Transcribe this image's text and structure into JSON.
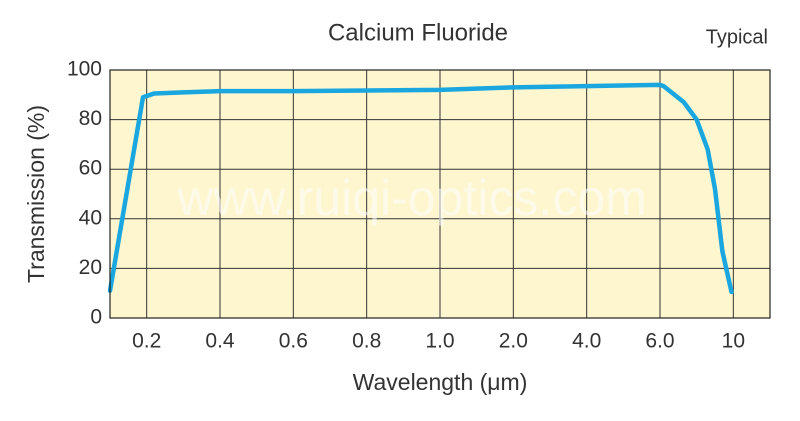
{
  "chart_data": {
    "type": "line",
    "title": "Calcium Fluoride",
    "subtitle": "Typical",
    "watermark": "www.ruiqi-optics.com",
    "x_label": "Wavelength (μm)",
    "y_label": "Transmission (%)",
    "xscale": "tick-spaced",
    "xlim": [
      0.1,
      12
    ],
    "xticks": [
      0.2,
      0.4,
      0.6,
      0.8,
      {
        "value": 1,
        "label": "1.0"
      },
      {
        "value": 2,
        "label": "2.0"
      },
      {
        "value": 4,
        "label": "4.0"
      },
      {
        "value": 6,
        "label": "6.0"
      },
      10
    ],
    "ylim": [
      0,
      100
    ],
    "yticks": [
      0,
      20,
      40,
      60,
      80,
      100
    ],
    "grid": true,
    "x": [
      0.1,
      0.19,
      0.22,
      0.3,
      0.4,
      0.6,
      1,
      2,
      4,
      6,
      6.2,
      7.3,
      8,
      8.6,
      9,
      9.4,
      9.9
    ],
    "series": [
      {
        "color": "#1aa7e0",
        "values": [
          11,
          89,
          90.5,
          91,
          91.5,
          91.5,
          92,
          93,
          93.5,
          94,
          93.5,
          87,
          80,
          68,
          52,
          27,
          10.5
        ]
      }
    ]
  }
}
